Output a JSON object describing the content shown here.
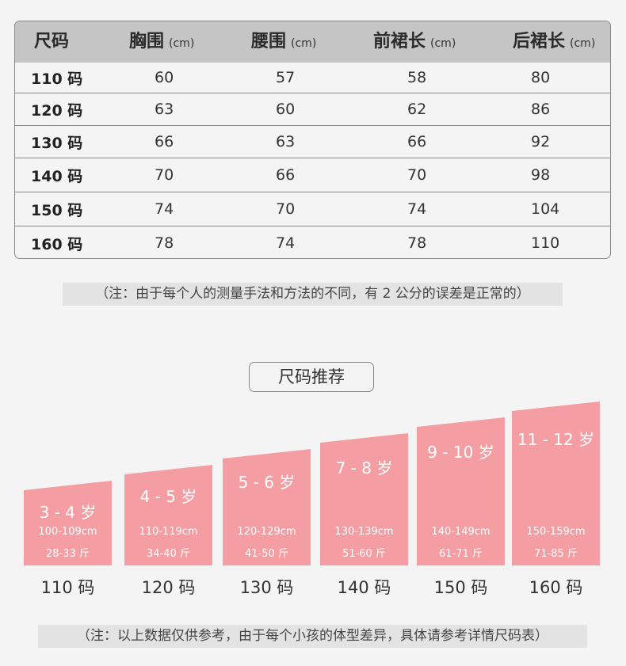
{
  "size_table": {
    "headers": [
      {
        "label": "尺码",
        "unit": ""
      },
      {
        "label": "胸围",
        "unit": "(cm)"
      },
      {
        "label": "腰围",
        "unit": "(cm)"
      },
      {
        "label": "前裙长",
        "unit": "(cm)"
      },
      {
        "label": "后裙长",
        "unit": "(cm)"
      }
    ],
    "rows": [
      {
        "size": "110 码",
        "chest": "60",
        "waist": "57",
        "front_length": "58",
        "back_length": "80"
      },
      {
        "size": "120 码",
        "chest": "63",
        "waist": "60",
        "front_length": "62",
        "back_length": "86"
      },
      {
        "size": "130 码",
        "chest": "66",
        "waist": "63",
        "front_length": "66",
        "back_length": "92"
      },
      {
        "size": "140 码",
        "chest": "70",
        "waist": "66",
        "front_length": "70",
        "back_length": "98"
      },
      {
        "size": "150 码",
        "chest": "74",
        "waist": "70",
        "front_length": "74",
        "back_length": "104"
      },
      {
        "size": "160 码",
        "chest": "78",
        "waist": "74",
        "front_length": "78",
        "back_length": "110"
      }
    ]
  },
  "note_measure": "（注：由于每个人的测量手法和方法的不同，有 2 公分的误差是正常的）",
  "recommend_title": "尺码推荐",
  "recommendations": [
    {
      "age": "3 - 4 岁",
      "height": "100-109cm",
      "weight": "28-33 斤",
      "size": "110 码"
    },
    {
      "age": "4 - 5 岁",
      "height": "110-119cm",
      "weight": "34-40 斤",
      "size": "120 码"
    },
    {
      "age": "5 - 6 岁",
      "height": "120-129cm",
      "weight": "41-50 斤",
      "size": "130 码"
    },
    {
      "age": "7 - 8 岁",
      "height": "130-139cm",
      "weight": "51-60 斤",
      "size": "140 码"
    },
    {
      "age": "9 - 10 岁",
      "height": "140-149cm",
      "weight": "61-71 斤",
      "size": "150 码"
    },
    {
      "age": "11 - 12 岁",
      "height": "150-159cm",
      "weight": "71-85 斤",
      "size": "160 码"
    }
  ],
  "bar_color": "#f49ea3",
  "note_reference": "（注：以上数据仅供参考，由于每个小孩的体型差异，具体请参考详情尺码表）"
}
